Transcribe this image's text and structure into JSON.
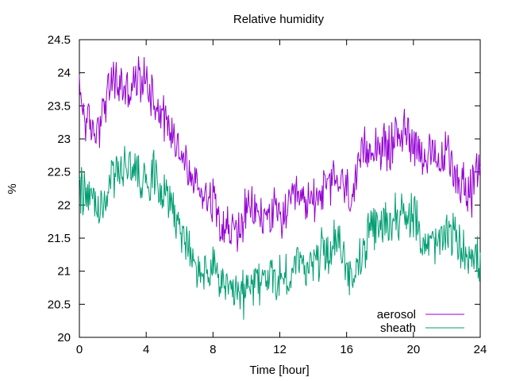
{
  "chart_data": {
    "type": "line",
    "title": "Relative humidity",
    "xlabel": "Time [hour]",
    "ylabel": "%",
    "xlim": [
      0,
      24
    ],
    "ylim": [
      20,
      24.5
    ],
    "x_ticks": [
      "0",
      "4",
      "8",
      "12",
      "16",
      "20",
      "24"
    ],
    "y_ticks": [
      "20",
      "20.5",
      "21",
      "21.5",
      "22",
      "22.5",
      "23",
      "23.5",
      "24",
      "24.5"
    ],
    "grid": false,
    "legend_position": "bottom-right",
    "x": [
      0,
      0.5,
      1,
      1.5,
      2,
      2.5,
      3,
      3.5,
      4,
      4.5,
      5,
      5.5,
      6,
      6.5,
      7,
      7.5,
      8,
      8.5,
      9,
      9.5,
      10,
      10.5,
      11,
      11.5,
      12,
      12.5,
      13,
      13.5,
      14,
      14.5,
      15,
      15.5,
      16,
      16.5,
      17,
      17.5,
      18,
      18.5,
      19,
      19.5,
      20,
      20.5,
      21,
      21.5,
      22,
      22.5,
      23,
      23.5,
      24
    ],
    "series": [
      {
        "name": "aerosol",
        "color": "#9400d3",
        "values": [
          23.7,
          23.2,
          23.1,
          23.5,
          23.9,
          23.8,
          23.7,
          23.9,
          23.9,
          23.6,
          23.4,
          23.1,
          22.9,
          22.5,
          22.3,
          22.2,
          22.1,
          21.8,
          21.6,
          21.6,
          21.9,
          21.9,
          21.8,
          21.9,
          21.8,
          21.9,
          22.1,
          22.0,
          22.1,
          22.2,
          22.3,
          22.4,
          22.2,
          22.2,
          22.8,
          22.9,
          22.9,
          22.8,
          23.1,
          23.1,
          23.0,
          22.8,
          22.7,
          22.6,
          22.8,
          22.5,
          22.3,
          22.2,
          22.6
        ]
      },
      {
        "name": "sheath",
        "color": "#009e73",
        "values": [
          22.3,
          22.1,
          22.0,
          22.0,
          22.5,
          22.5,
          22.6,
          22.5,
          22.4,
          22.5,
          22.3,
          22.0,
          21.7,
          21.3,
          21.0,
          21.0,
          21.0,
          20.9,
          20.6,
          20.6,
          20.7,
          20.8,
          20.9,
          20.9,
          20.9,
          20.9,
          21.1,
          21.1,
          21.1,
          21.3,
          21.3,
          21.5,
          21.0,
          21.0,
          21.3,
          21.6,
          21.7,
          21.7,
          21.9,
          21.8,
          21.8,
          21.5,
          21.4,
          21.4,
          21.6,
          21.5,
          21.3,
          21.3,
          21.1
        ]
      }
    ]
  }
}
